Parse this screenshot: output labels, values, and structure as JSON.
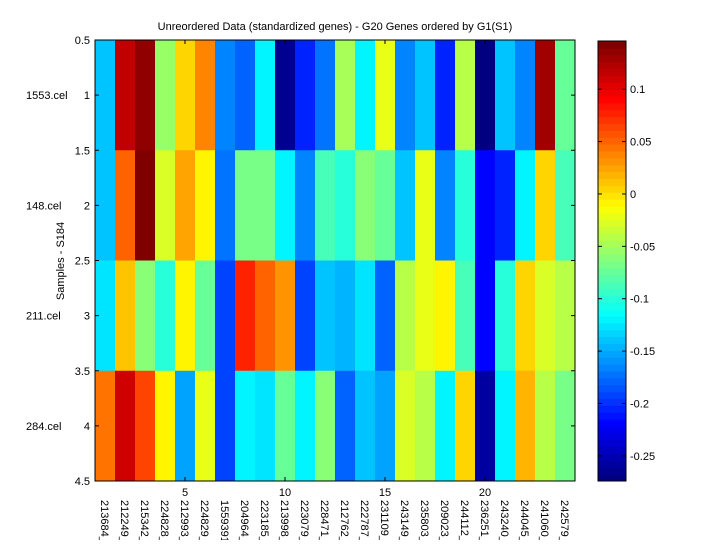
{
  "chart_data": {
    "type": "heatmap",
    "title": "Unreordered Data (standardized genes) - G20 Genes ordered by G1(S1)",
    "ylabel": "Samples - S184",
    "xlabel": "",
    "colormap": "jet",
    "clim": [
      -0.274,
      0.146
    ],
    "x_ticks": [
      5,
      10,
      15,
      20
    ],
    "y_ticks": [
      "0.5",
      "1",
      "1.5",
      "2",
      "2.5",
      "3",
      "3.5",
      "4",
      "4.5"
    ],
    "colorbar_ticks": [
      0.1,
      0.05,
      0,
      -0.05,
      -0.1,
      -0.15,
      -0.2,
      -0.25
    ],
    "colorbar_tick_labels": [
      "0.1",
      "0.05",
      "0",
      "-0.05",
      "-0.1",
      "-0.15",
      "-0.2",
      "-0.25"
    ],
    "rows": [
      "1553.cel",
      "148.cel",
      "211.cel",
      "284.cel"
    ],
    "columns": [
      "213684_",
      "212249_",
      "215342_",
      "224828_",
      "212993_",
      "224829_",
      "1559391",
      "204964_",
      "223185_",
      "213998_",
      "223079_",
      "228471_",
      "212762_",
      "222787_",
      "231109_",
      "243149_",
      "235803_",
      "209023_",
      "244112_",
      "236251_",
      "243240_",
      "244045_",
      "241060_",
      "242579_"
    ],
    "values": [
      [
        -0.138,
        0.115,
        0.133,
        -0.051,
        0.004,
        0.041,
        -0.169,
        -0.18,
        -0.117,
        -0.261,
        -0.203,
        -0.175,
        -0.047,
        -0.117,
        -0.024,
        -0.163,
        -0.138,
        -0.208,
        -0.044,
        -0.274,
        -0.138,
        -0.169,
        0.129,
        -0.077
      ],
      [
        -0.138,
        0.054,
        0.146,
        -0.031,
        0.024,
        -0.005,
        -0.175,
        -0.07,
        -0.07,
        -0.117,
        -0.169,
        -0.089,
        -0.103,
        -0.064,
        -0.077,
        -0.138,
        -0.024,
        -0.169,
        -0.097,
        -0.221,
        -0.208,
        -0.123,
        0.002,
        -0.089
      ],
      [
        -0.124,
        0.01,
        -0.064,
        -0.103,
        -0.011,
        -0.077,
        -0.195,
        0.074,
        0.054,
        0.028,
        -0.195,
        -0.138,
        -0.143,
        -0.129,
        -0.182,
        -0.038,
        -0.024,
        -0.005,
        -0.089,
        -0.221,
        -0.103,
        0.008,
        -0.031,
        -0.038
      ],
      [
        0.047,
        0.107,
        0.061,
        -0.005,
        -0.152,
        -0.024,
        -0.195,
        -0.117,
        -0.124,
        -0.077,
        -0.117,
        -0.058,
        -0.182,
        -0.138,
        -0.152,
        -0.031,
        -0.038,
        -0.117,
        0.002,
        -0.257,
        -0.117,
        0.02,
        -0.038,
        -0.07
      ]
    ]
  }
}
